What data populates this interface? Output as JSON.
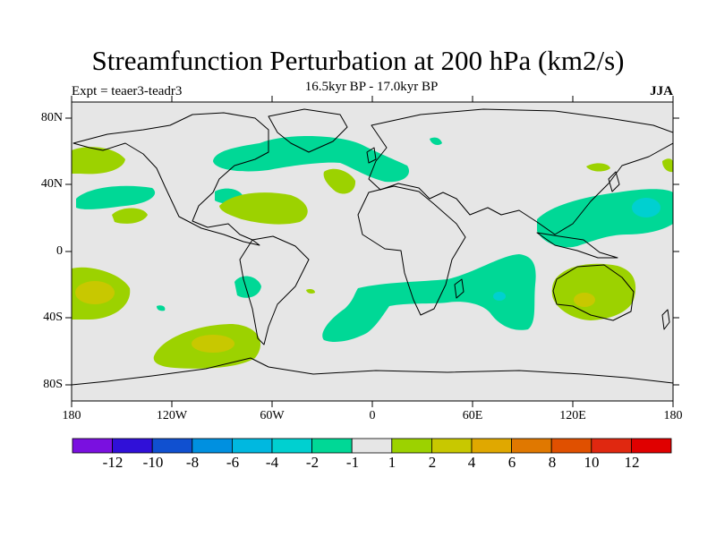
{
  "title": "Streamfunction Perturbation at 200 hPa (km2/s)",
  "subtitle": "16.5kyr BP - 17.0kyr BP",
  "left_string": "Expt = teaer3-teadr3",
  "right_string": "JJA",
  "lat_labels": [
    "80N",
    "40N",
    "0",
    "40S",
    "80S"
  ],
  "lon_labels": [
    "180",
    "120W",
    "60W",
    "0",
    "60E",
    "120E",
    "180"
  ],
  "colorbar": {
    "colors": [
      "#7a10e0",
      "#3010d8",
      "#1050d0",
      "#0090e0",
      "#00b8e0",
      "#00d0d0",
      "#00d896",
      "#e6e6e6",
      "#9cd200",
      "#c8c800",
      "#e0a800",
      "#e07800",
      "#e05000",
      "#e02810",
      "#e00000"
    ],
    "labels": [
      "-12",
      "-10",
      "-8",
      "-6",
      "-4",
      "-2",
      "-1",
      "1",
      "2",
      "4",
      "6",
      "8",
      "10",
      "12"
    ]
  },
  "field_colors": {
    "neg1": "#00d896",
    "neg2": "#00d0d0",
    "pos1": "#9cd200",
    "pos2": "#c8c800",
    "background": "#e6e6e6"
  }
}
